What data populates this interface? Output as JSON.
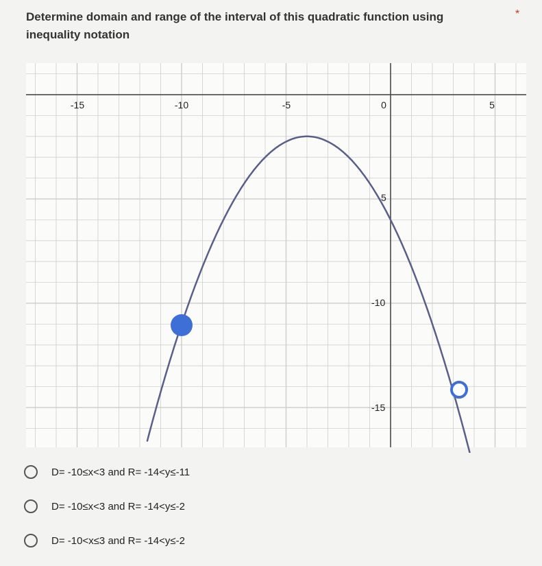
{
  "question": {
    "title": "Determine domain and range of the interval of this quadratic function using inequality notation",
    "required": "*"
  },
  "graph": {
    "x_tick_labels": [
      "-15",
      "-10",
      "-5",
      "0",
      "5"
    ],
    "y_tick_labels": [
      "5",
      "-10",
      "-15"
    ]
  },
  "options": [
    "D= -10≤x<3 and R= -14<y≤-11",
    "D= -10≤x<3 and R= -14<y≤-2",
    "D= -10<x≤3 and R= -14<y≤-2"
  ]
}
